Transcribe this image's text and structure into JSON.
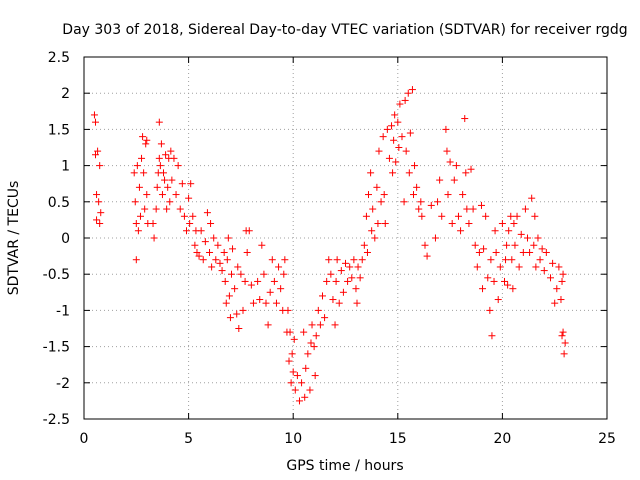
{
  "chart_data": {
    "type": "scatter",
    "title": "Day 303 of 2018, Sidereal Day-to-day VTEC variation (SDTVAR) for receiver rgdg",
    "xlabel": "GPS time / hours",
    "ylabel": "SDTVAR / TECUs",
    "xlim": [
      0,
      25
    ],
    "ylim": [
      -2.5,
      2.5
    ],
    "xticks": [
      0,
      5,
      10,
      15,
      20,
      25
    ],
    "xtick_labels": [
      "0",
      "5",
      "10",
      "15",
      "20",
      "25"
    ],
    "yticks": [
      -2.5,
      -2,
      -1.5,
      -1,
      -0.5,
      0,
      0.5,
      1,
      1.5,
      2,
      2.5
    ],
    "ytick_labels": [
      "-2.5",
      "-2",
      "-1.5",
      "-1",
      "-0.5",
      "0",
      "0.5",
      "1",
      "1.5",
      "2",
      "2.5"
    ],
    "grid": true,
    "marker": "+",
    "color": "#ff0000",
    "series": [
      {
        "name": "SDTVAR",
        "points": [
          [
            0.5,
            1.7
          ],
          [
            0.55,
            1.6
          ],
          [
            0.55,
            1.15
          ],
          [
            0.6,
            0.6
          ],
          [
            0.6,
            0.25
          ],
          [
            0.65,
            1.2
          ],
          [
            0.7,
            0.5
          ],
          [
            0.75,
            1.0
          ],
          [
            0.75,
            0.2
          ],
          [
            0.8,
            0.35
          ],
          [
            2.4,
            0.9
          ],
          [
            2.45,
            0.5
          ],
          [
            2.5,
            0.2
          ],
          [
            2.5,
            -0.3
          ],
          [
            2.55,
            1.0
          ],
          [
            2.6,
            0.1
          ],
          [
            2.65,
            0.7
          ],
          [
            2.7,
            0.3
          ],
          [
            2.75,
            1.1
          ],
          [
            2.8,
            1.4
          ],
          [
            2.85,
            0.9
          ],
          [
            2.9,
            0.4
          ],
          [
            2.95,
            1.3
          ],
          [
            3.0,
            1.35
          ],
          [
            3.0,
            0.6
          ],
          [
            3.05,
            0.2
          ],
          [
            3.3,
            0.2
          ],
          [
            3.35,
            0.0
          ],
          [
            3.45,
            0.4
          ],
          [
            3.5,
            0.7
          ],
          [
            3.55,
            0.9
          ],
          [
            3.6,
            1.1
          ],
          [
            3.6,
            1.6
          ],
          [
            3.65,
            1.0
          ],
          [
            3.7,
            1.3
          ],
          [
            3.75,
            0.6
          ],
          [
            3.8,
            0.9
          ],
          [
            3.85,
            0.8
          ],
          [
            3.9,
            1.15
          ],
          [
            3.95,
            0.4
          ],
          [
            4.0,
            0.7
          ],
          [
            4.05,
            1.1
          ],
          [
            4.1,
            0.5
          ],
          [
            4.15,
            1.2
          ],
          [
            4.2,
            0.8
          ],
          [
            4.3,
            1.1
          ],
          [
            4.4,
            0.6
          ],
          [
            4.5,
            1.0
          ],
          [
            4.6,
            0.4
          ],
          [
            4.7,
            0.75
          ],
          [
            4.8,
            0.3
          ],
          [
            4.9,
            0.1
          ],
          [
            5.0,
            0.55
          ],
          [
            5.05,
            0.2
          ],
          [
            5.1,
            0.75
          ],
          [
            5.2,
            0.3
          ],
          [
            5.3,
            -0.1
          ],
          [
            5.35,
            0.1
          ],
          [
            5.4,
            -0.2
          ],
          [
            5.5,
            -0.25
          ],
          [
            5.6,
            0.1
          ],
          [
            5.7,
            -0.3
          ],
          [
            5.8,
            -0.05
          ],
          [
            5.9,
            0.35
          ],
          [
            6.0,
            -0.2
          ],
          [
            6.05,
            0.2
          ],
          [
            6.1,
            -0.4
          ],
          [
            6.2,
            0.0
          ],
          [
            6.3,
            -0.3
          ],
          [
            6.4,
            -0.1
          ],
          [
            6.5,
            -0.35
          ],
          [
            6.6,
            -0.45
          ],
          [
            6.7,
            -0.2
          ],
          [
            6.75,
            -0.6
          ],
          [
            6.8,
            -0.9
          ],
          [
            6.85,
            -0.3
          ],
          [
            6.9,
            0.0
          ],
          [
            6.95,
            -0.8
          ],
          [
            7.0,
            -1.1
          ],
          [
            7.05,
            -0.5
          ],
          [
            7.1,
            -0.15
          ],
          [
            7.2,
            -0.7
          ],
          [
            7.3,
            -1.05
          ],
          [
            7.35,
            -0.4
          ],
          [
            7.4,
            -1.25
          ],
          [
            7.5,
            -0.5
          ],
          [
            7.6,
            -1.0
          ],
          [
            7.7,
            -0.6
          ],
          [
            7.75,
            0.1
          ],
          [
            7.8,
            -0.2
          ],
          [
            7.9,
            0.1
          ],
          [
            8.0,
            -0.65
          ],
          [
            8.1,
            -0.9
          ],
          [
            8.3,
            -0.6
          ],
          [
            8.4,
            -0.85
          ],
          [
            8.5,
            -0.1
          ],
          [
            8.6,
            -0.5
          ],
          [
            8.7,
            -0.9
          ],
          [
            8.8,
            -1.2
          ],
          [
            8.9,
            -0.75
          ],
          [
            9.0,
            -0.3
          ],
          [
            9.1,
            -0.6
          ],
          [
            9.2,
            -0.9
          ],
          [
            9.3,
            -0.4
          ],
          [
            9.4,
            -0.7
          ],
          [
            9.5,
            -1.0
          ],
          [
            9.55,
            -0.5
          ],
          [
            9.6,
            -0.3
          ],
          [
            9.7,
            -1.3
          ],
          [
            9.75,
            -1.0
          ],
          [
            9.8,
            -1.7
          ],
          [
            9.85,
            -1.3
          ],
          [
            9.9,
            -2.0
          ],
          [
            9.95,
            -1.6
          ],
          [
            10.0,
            -1.85
          ],
          [
            10.05,
            -1.4
          ],
          [
            10.1,
            -2.1
          ],
          [
            10.2,
            -1.9
          ],
          [
            10.3,
            -2.25
          ],
          [
            10.4,
            -2.0
          ],
          [
            10.5,
            -1.3
          ],
          [
            10.55,
            -2.2
          ],
          [
            10.6,
            -1.8
          ],
          [
            10.7,
            -1.6
          ],
          [
            10.8,
            -2.1
          ],
          [
            10.85,
            -1.45
          ],
          [
            10.9,
            -1.2
          ],
          [
            11.0,
            -1.5
          ],
          [
            11.05,
            -1.9
          ],
          [
            11.1,
            -1.35
          ],
          [
            11.2,
            -1.0
          ],
          [
            11.3,
            -1.2
          ],
          [
            11.4,
            -0.8
          ],
          [
            11.5,
            -1.1
          ],
          [
            11.6,
            -0.6
          ],
          [
            11.7,
            -0.3
          ],
          [
            11.8,
            -0.5
          ],
          [
            11.9,
            -0.85
          ],
          [
            12.0,
            -1.2
          ],
          [
            12.05,
            -0.6
          ],
          [
            12.1,
            -0.3
          ],
          [
            12.2,
            -0.9
          ],
          [
            12.3,
            -0.45
          ],
          [
            12.4,
            -0.75
          ],
          [
            12.5,
            -0.35
          ],
          [
            12.6,
            -0.6
          ],
          [
            12.7,
            -0.4
          ],
          [
            12.8,
            -0.55
          ],
          [
            12.9,
            -0.3
          ],
          [
            13.0,
            -0.7
          ],
          [
            13.05,
            -0.9
          ],
          [
            13.1,
            -0.4
          ],
          [
            13.2,
            -0.55
          ],
          [
            13.3,
            -0.3
          ],
          [
            13.4,
            -0.1
          ],
          [
            13.5,
            0.3
          ],
          [
            13.55,
            -0.2
          ],
          [
            13.6,
            0.6
          ],
          [
            13.7,
            0.9
          ],
          [
            13.75,
            0.1
          ],
          [
            13.8,
            0.4
          ],
          [
            13.9,
            0.0
          ],
          [
            14.0,
            0.7
          ],
          [
            14.05,
            0.2
          ],
          [
            14.1,
            1.2
          ],
          [
            14.2,
            0.5
          ],
          [
            14.3,
            1.4
          ],
          [
            14.35,
            0.6
          ],
          [
            14.4,
            0.2
          ],
          [
            14.5,
            1.5
          ],
          [
            14.6,
            1.1
          ],
          [
            14.7,
            1.55
          ],
          [
            14.75,
            0.9
          ],
          [
            14.8,
            1.35
          ],
          [
            14.85,
            1.7
          ],
          [
            14.9,
            1.05
          ],
          [
            15.0,
            1.6
          ],
          [
            15.05,
            1.25
          ],
          [
            15.1,
            1.85
          ],
          [
            15.2,
            1.4
          ],
          [
            15.3,
            0.5
          ],
          [
            15.35,
            1.9
          ],
          [
            15.4,
            1.2
          ],
          [
            15.5,
            2.0
          ],
          [
            15.55,
            0.9
          ],
          [
            15.6,
            1.45
          ],
          [
            15.7,
            2.05
          ],
          [
            15.75,
            0.6
          ],
          [
            15.8,
            1.0
          ],
          [
            15.9,
            0.7
          ],
          [
            16.0,
            0.4
          ],
          [
            16.1,
            0.5
          ],
          [
            16.15,
            0.3
          ],
          [
            16.3,
            -0.1
          ],
          [
            16.4,
            -0.25
          ],
          [
            16.6,
            0.45
          ],
          [
            16.8,
            0.0
          ],
          [
            16.9,
            0.5
          ],
          [
            17.0,
            0.8
          ],
          [
            17.1,
            0.3
          ],
          [
            17.3,
            1.5
          ],
          [
            17.35,
            1.2
          ],
          [
            17.4,
            0.6
          ],
          [
            17.5,
            1.05
          ],
          [
            17.6,
            0.2
          ],
          [
            17.7,
            0.8
          ],
          [
            17.8,
            1.0
          ],
          [
            17.9,
            0.3
          ],
          [
            18.0,
            0.1
          ],
          [
            18.1,
            0.6
          ],
          [
            18.2,
            1.65
          ],
          [
            18.25,
            0.9
          ],
          [
            18.3,
            0.4
          ],
          [
            18.4,
            0.2
          ],
          [
            18.5,
            0.95
          ],
          [
            18.6,
            0.4
          ],
          [
            18.7,
            -0.1
          ],
          [
            18.8,
            -0.4
          ],
          [
            18.9,
            -0.2
          ],
          [
            19.0,
            0.45
          ],
          [
            19.05,
            -0.7
          ],
          [
            19.1,
            -0.15
          ],
          [
            19.2,
            0.3
          ],
          [
            19.3,
            -0.55
          ],
          [
            19.4,
            -1.0
          ],
          [
            19.45,
            -0.3
          ],
          [
            19.5,
            -1.35
          ],
          [
            19.6,
            -0.6
          ],
          [
            19.65,
            0.1
          ],
          [
            19.7,
            -0.2
          ],
          [
            19.8,
            -0.85
          ],
          [
            19.9,
            -0.4
          ],
          [
            20.0,
            0.2
          ],
          [
            20.1,
            -0.6
          ],
          [
            20.15,
            -0.3
          ],
          [
            20.2,
            -0.1
          ],
          [
            20.25,
            -0.65
          ],
          [
            20.3,
            0.1
          ],
          [
            20.4,
            0.3
          ],
          [
            20.45,
            -0.3
          ],
          [
            20.5,
            -0.7
          ],
          [
            20.55,
            0.2
          ],
          [
            20.6,
            -0.1
          ],
          [
            20.7,
            0.3
          ],
          [
            20.8,
            -0.4
          ],
          [
            20.9,
            0.05
          ],
          [
            21.0,
            -0.2
          ],
          [
            21.1,
            0.4
          ],
          [
            21.2,
            0.0
          ],
          [
            21.3,
            -0.2
          ],
          [
            21.4,
            0.55
          ],
          [
            21.5,
            -0.1
          ],
          [
            21.55,
            0.3
          ],
          [
            21.6,
            -0.4
          ],
          [
            21.7,
            0.0
          ],
          [
            21.8,
            -0.3
          ],
          [
            21.9,
            -0.15
          ],
          [
            22.0,
            -0.45
          ],
          [
            22.1,
            -0.2
          ],
          [
            22.3,
            -0.55
          ],
          [
            22.4,
            -0.35
          ],
          [
            22.5,
            -0.9
          ],
          [
            22.6,
            -0.7
          ],
          [
            22.7,
            -0.4
          ],
          [
            22.8,
            -0.85
          ],
          [
            22.85,
            -0.6
          ],
          [
            22.9,
            -1.3
          ],
          [
            22.95,
            -1.6
          ],
          [
            23.0,
            -1.45
          ],
          [
            22.85,
            -1.35
          ],
          [
            22.9,
            -0.5
          ]
        ]
      }
    ]
  }
}
